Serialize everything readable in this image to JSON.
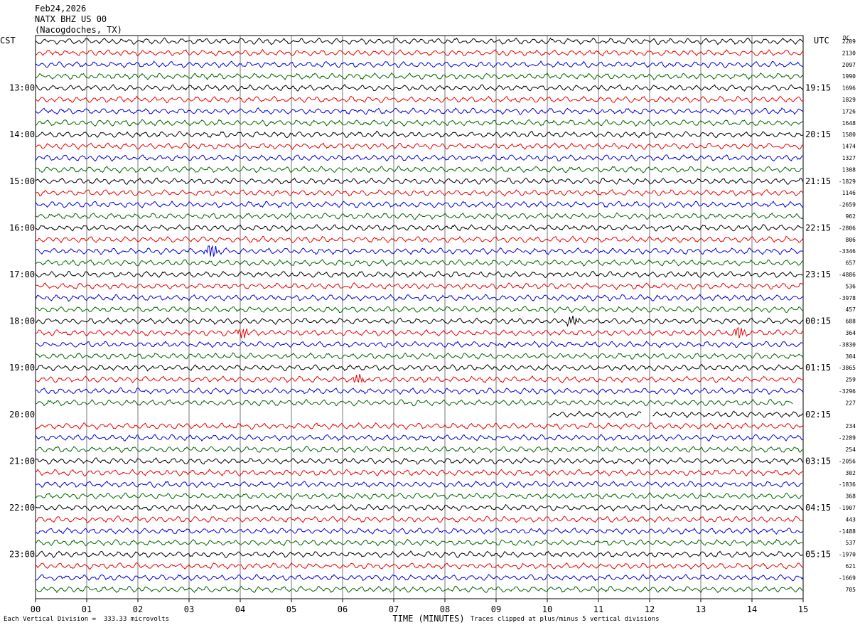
{
  "header": {
    "date": "Feb24,2026",
    "station": "NATX BHZ US 00",
    "location": "(Nacogdoches, TX)"
  },
  "left_zone": "CST",
  "right_zone": "UTC",
  "dc_header": "DC",
  "footer": {
    "scale": "Each Vertical Division =  333.33 microvolts",
    "clip": "Traces clipped at plus/minus 5 vertical divisions"
  },
  "colors": {
    "trace_cycle": [
      "#000000",
      "#ee0000",
      "#0000dd",
      "#006600"
    ],
    "grid": "#000000"
  },
  "chart_data": {
    "type": "line",
    "title": "Feb24,2026 NATX BHZ US 00 (Nacogdoches, TX)",
    "xlabel": "TIME (MINUTES)",
    "ylabel": "",
    "x_ticks": [
      "00",
      "01",
      "02",
      "03",
      "04",
      "05",
      "06",
      "07",
      "08",
      "09",
      "10",
      "11",
      "12",
      "13",
      "14",
      "15"
    ],
    "xlim": [
      0,
      15
    ],
    "left_hour_labels": [
      "13:00",
      "14:00",
      "15:00",
      "16:00",
      "17:00",
      "18:00",
      "19:00",
      "20:00",
      "21:00",
      "22:00",
      "23:00"
    ],
    "right_hour_labels": [
      "19:15",
      "20:15",
      "21:15",
      "22:15",
      "23:15",
      "00:15",
      "01:15",
      "02:15",
      "03:15",
      "04:15",
      "05:15"
    ],
    "trace_count": 48,
    "dc_offsets": [
      "2209",
      "2130",
      "2097",
      "1990",
      "1696",
      "1829",
      "1726",
      "1648",
      "1580",
      "1474",
      "1327",
      "1308",
      "-1829",
      "1146",
      "-2659",
      "962",
      "-2806",
      "806",
      "-3346",
      "657",
      "-4886",
      "536",
      "-3978",
      "457",
      "688",
      "364",
      "-3830",
      "304",
      "-3865",
      "259",
      "-3296",
      "227",
      "",
      "234",
      "-2289",
      "254",
      "-2056",
      "302",
      "-1836",
      "368",
      "-1907",
      "443",
      "-1488",
      "537",
      "-1970",
      "621",
      "-1669",
      "705"
    ],
    "events": [
      {
        "trace": 18,
        "minute": 3.45,
        "amp": 2.6
      },
      {
        "trace": 24,
        "minute": 10.5,
        "amp": 1.8
      },
      {
        "trace": 25,
        "minute": 4.05,
        "amp": 2.0
      },
      {
        "trace": 25,
        "minute": 13.75,
        "amp": 2.0
      },
      {
        "trace": 29,
        "minute": 6.3,
        "amp": 1.6
      }
    ],
    "gaps": [
      {
        "trace": 31,
        "from_minute": 14.8,
        "to_minute": 15
      },
      {
        "trace": 32,
        "from_minute": 0,
        "to_minute": 10.0
      },
      {
        "trace": 32,
        "from_minute": 11.85,
        "to_minute": 12.05
      }
    ],
    "grid": true
  }
}
